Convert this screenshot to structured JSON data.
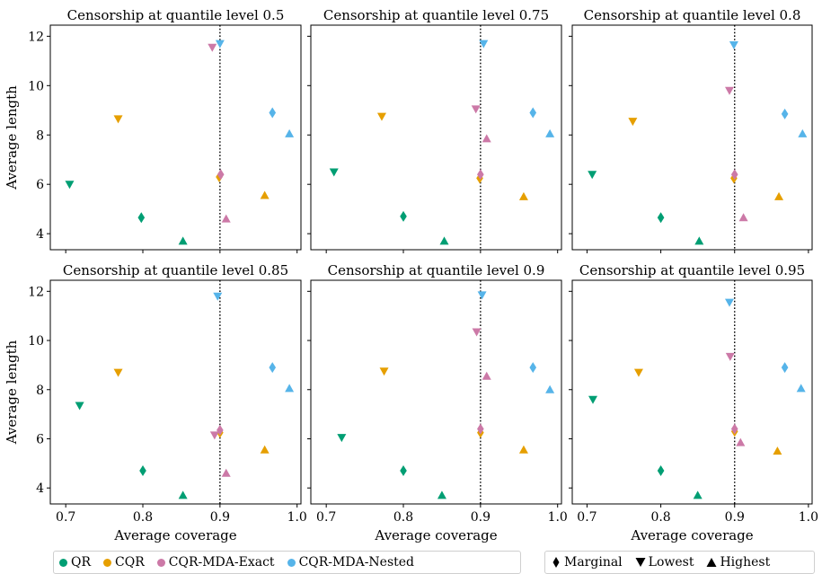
{
  "chart_data": [
    {
      "type": "scatter",
      "title": "Censorship at quantile level 0.5",
      "xlabel": "",
      "ylabel": "Average length",
      "show_xticklabels": false,
      "show_yticklabels": true,
      "points": [
        {
          "method": "QR",
          "marker": "Lowest",
          "x": 0.705,
          "y": 6.0
        },
        {
          "method": "QR",
          "marker": "Marginal",
          "x": 0.798,
          "y": 4.65
        },
        {
          "method": "QR",
          "marker": "Highest",
          "x": 0.852,
          "y": 3.7
        },
        {
          "method": "CQR",
          "marker": "Lowest",
          "x": 0.768,
          "y": 8.65
        },
        {
          "method": "CQR",
          "marker": "Marginal",
          "x": 0.899,
          "y": 6.3
        },
        {
          "method": "CQR",
          "marker": "Highest",
          "x": 0.958,
          "y": 5.55
        },
        {
          "method": "CQR-MDA-Exact",
          "marker": "Lowest",
          "x": 0.89,
          "y": 11.55
        },
        {
          "method": "CQR-MDA-Exact",
          "marker": "Marginal",
          "x": 0.901,
          "y": 6.4
        },
        {
          "method": "CQR-MDA-Exact",
          "marker": "Highest",
          "x": 0.908,
          "y": 4.6
        },
        {
          "method": "CQR-MDA-Nested",
          "marker": "Lowest",
          "x": 0.9,
          "y": 11.7
        },
        {
          "method": "CQR-MDA-Nested",
          "marker": "Marginal",
          "x": 0.968,
          "y": 8.9
        },
        {
          "method": "CQR-MDA-Nested",
          "marker": "Highest",
          "x": 0.99,
          "y": 8.05
        }
      ]
    },
    {
      "type": "scatter",
      "title": "Censorship at quantile level 0.75",
      "xlabel": "",
      "ylabel": "",
      "show_xticklabels": false,
      "show_yticklabels": false,
      "points": [
        {
          "method": "QR",
          "marker": "Lowest",
          "x": 0.71,
          "y": 6.5
        },
        {
          "method": "QR",
          "marker": "Marginal",
          "x": 0.8,
          "y": 4.7
        },
        {
          "method": "QR",
          "marker": "Highest",
          "x": 0.853,
          "y": 3.7
        },
        {
          "method": "CQR",
          "marker": "Lowest",
          "x": 0.772,
          "y": 8.75
        },
        {
          "method": "CQR",
          "marker": "Marginal",
          "x": 0.899,
          "y": 6.25
        },
        {
          "method": "CQR",
          "marker": "Highest",
          "x": 0.956,
          "y": 5.5
        },
        {
          "method": "CQR-MDA-Exact",
          "marker": "Lowest",
          "x": 0.894,
          "y": 9.05
        },
        {
          "method": "CQR-MDA-Exact",
          "marker": "Marginal",
          "x": 0.9,
          "y": 6.4
        },
        {
          "method": "CQR-MDA-Exact",
          "marker": "Highest",
          "x": 0.908,
          "y": 7.85
        },
        {
          "method": "CQR-MDA-Nested",
          "marker": "Lowest",
          "x": 0.904,
          "y": 11.7
        },
        {
          "method": "CQR-MDA-Nested",
          "marker": "Marginal",
          "x": 0.968,
          "y": 8.9
        },
        {
          "method": "CQR-MDA-Nested",
          "marker": "Highest",
          "x": 0.99,
          "y": 8.05
        }
      ]
    },
    {
      "type": "scatter",
      "title": "Censorship at quantile level 0.8",
      "xlabel": "",
      "ylabel": "",
      "show_xticklabels": false,
      "show_yticklabels": false,
      "points": [
        {
          "method": "QR",
          "marker": "Lowest",
          "x": 0.707,
          "y": 6.4
        },
        {
          "method": "QR",
          "marker": "Marginal",
          "x": 0.8,
          "y": 4.65
        },
        {
          "method": "QR",
          "marker": "Highest",
          "x": 0.852,
          "y": 3.7
        },
        {
          "method": "CQR",
          "marker": "Lowest",
          "x": 0.762,
          "y": 8.55
        },
        {
          "method": "CQR",
          "marker": "Marginal",
          "x": 0.899,
          "y": 6.25
        },
        {
          "method": "CQR",
          "marker": "Highest",
          "x": 0.96,
          "y": 5.5
        },
        {
          "method": "CQR-MDA-Exact",
          "marker": "Lowest",
          "x": 0.893,
          "y": 9.8
        },
        {
          "method": "CQR-MDA-Exact",
          "marker": "Marginal",
          "x": 0.9,
          "y": 6.4
        },
        {
          "method": "CQR-MDA-Exact",
          "marker": "Highest",
          "x": 0.912,
          "y": 4.65
        },
        {
          "method": "CQR-MDA-Nested",
          "marker": "Lowest",
          "x": 0.899,
          "y": 11.65
        },
        {
          "method": "CQR-MDA-Nested",
          "marker": "Marginal",
          "x": 0.968,
          "y": 8.85
        },
        {
          "method": "CQR-MDA-Nested",
          "marker": "Highest",
          "x": 0.992,
          "y": 8.05
        }
      ]
    },
    {
      "type": "scatter",
      "title": "Censorship at quantile level 0.85",
      "xlabel": "Average coverage",
      "ylabel": "Average length",
      "show_xticklabels": true,
      "show_yticklabels": true,
      "points": [
        {
          "method": "QR",
          "marker": "Lowest",
          "x": 0.718,
          "y": 7.35
        },
        {
          "method": "QR",
          "marker": "Marginal",
          "x": 0.8,
          "y": 4.7
        },
        {
          "method": "QR",
          "marker": "Highest",
          "x": 0.852,
          "y": 3.7
        },
        {
          "method": "CQR",
          "marker": "Lowest",
          "x": 0.768,
          "y": 8.7
        },
        {
          "method": "CQR",
          "marker": "Marginal",
          "x": 0.9,
          "y": 6.25
        },
        {
          "method": "CQR",
          "marker": "Highest",
          "x": 0.958,
          "y": 5.55
        },
        {
          "method": "CQR-MDA-Exact",
          "marker": "Lowest",
          "x": 0.893,
          "y": 6.15
        },
        {
          "method": "CQR-MDA-Exact",
          "marker": "Marginal",
          "x": 0.9,
          "y": 6.35
        },
        {
          "method": "CQR-MDA-Exact",
          "marker": "Highest",
          "x": 0.908,
          "y": 4.6
        },
        {
          "method": "CQR-MDA-Nested",
          "marker": "Lowest",
          "x": 0.897,
          "y": 11.8
        },
        {
          "method": "CQR-MDA-Nested",
          "marker": "Marginal",
          "x": 0.968,
          "y": 8.9
        },
        {
          "method": "CQR-MDA-Nested",
          "marker": "Highest",
          "x": 0.99,
          "y": 8.05
        }
      ]
    },
    {
      "type": "scatter",
      "title": "Censorship at quantile level 0.9",
      "xlabel": "Average coverage",
      "ylabel": "",
      "show_xticklabels": true,
      "show_yticklabels": false,
      "points": [
        {
          "method": "QR",
          "marker": "Lowest",
          "x": 0.72,
          "y": 6.05
        },
        {
          "method": "QR",
          "marker": "Marginal",
          "x": 0.8,
          "y": 4.7
        },
        {
          "method": "QR",
          "marker": "Highest",
          "x": 0.85,
          "y": 3.7
        },
        {
          "method": "CQR",
          "marker": "Lowest",
          "x": 0.775,
          "y": 8.75
        },
        {
          "method": "CQR",
          "marker": "Marginal",
          "x": 0.9,
          "y": 6.25
        },
        {
          "method": "CQR",
          "marker": "Highest",
          "x": 0.956,
          "y": 5.55
        },
        {
          "method": "CQR-MDA-Exact",
          "marker": "Lowest",
          "x": 0.895,
          "y": 10.35
        },
        {
          "method": "CQR-MDA-Exact",
          "marker": "Marginal",
          "x": 0.9,
          "y": 6.4
        },
        {
          "method": "CQR-MDA-Exact",
          "marker": "Highest",
          "x": 0.908,
          "y": 8.55
        },
        {
          "method": "CQR-MDA-Nested",
          "marker": "Lowest",
          "x": 0.902,
          "y": 11.85
        },
        {
          "method": "CQR-MDA-Nested",
          "marker": "Marginal",
          "x": 0.968,
          "y": 8.9
        },
        {
          "method": "CQR-MDA-Nested",
          "marker": "Highest",
          "x": 0.99,
          "y": 8.0
        }
      ]
    },
    {
      "type": "scatter",
      "title": "Censorship at quantile level 0.95",
      "xlabel": "Average coverage",
      "ylabel": "",
      "show_xticklabels": true,
      "show_yticklabels": false,
      "points": [
        {
          "method": "QR",
          "marker": "Lowest",
          "x": 0.708,
          "y": 7.6
        },
        {
          "method": "QR",
          "marker": "Marginal",
          "x": 0.8,
          "y": 4.7
        },
        {
          "method": "QR",
          "marker": "Highest",
          "x": 0.85,
          "y": 3.7
        },
        {
          "method": "CQR",
          "marker": "Lowest",
          "x": 0.77,
          "y": 8.7
        },
        {
          "method": "CQR",
          "marker": "Marginal",
          "x": 0.9,
          "y": 6.3
        },
        {
          "method": "CQR",
          "marker": "Highest",
          "x": 0.958,
          "y": 5.5
        },
        {
          "method": "CQR-MDA-Exact",
          "marker": "Lowest",
          "x": 0.894,
          "y": 9.35
        },
        {
          "method": "CQR-MDA-Exact",
          "marker": "Marginal",
          "x": 0.9,
          "y": 6.4
        },
        {
          "method": "CQR-MDA-Exact",
          "marker": "Highest",
          "x": 0.908,
          "y": 5.85
        },
        {
          "method": "CQR-MDA-Nested",
          "marker": "Lowest",
          "x": 0.893,
          "y": 11.55
        },
        {
          "method": "CQR-MDA-Nested",
          "marker": "Marginal",
          "x": 0.968,
          "y": 8.9
        },
        {
          "method": "CQR-MDA-Nested",
          "marker": "Highest",
          "x": 0.99,
          "y": 8.05
        }
      ]
    }
  ],
  "axes": {
    "xlim": [
      0.68,
      1.005
    ],
    "ylim": [
      3.35,
      12.45
    ],
    "xticks": [
      0.7,
      0.8,
      0.9,
      1.0
    ],
    "xtick_labels": [
      "0.7",
      "0.8",
      "0.9",
      "1.0"
    ],
    "yticks": [
      4,
      6,
      8,
      10,
      12
    ],
    "ytick_labels": [
      "4",
      "6",
      "8",
      "10",
      "12"
    ],
    "reference_line_x": 0.9,
    "grid": false
  },
  "legend": {
    "methods": [
      {
        "name": "QR",
        "color": "#009E73"
      },
      {
        "name": "CQR",
        "color": "#E69F00"
      },
      {
        "name": "CQR-MDA-Exact",
        "color": "#CC79A7"
      },
      {
        "name": "CQR-MDA-Nested",
        "color": "#56B4E9"
      }
    ],
    "markers": [
      {
        "name": "Marginal",
        "symbol": "diamond"
      },
      {
        "name": "Lowest",
        "symbol": "triangle-down"
      },
      {
        "name": "Highest",
        "symbol": "triangle-up"
      }
    ],
    "placement": "bottom"
  }
}
